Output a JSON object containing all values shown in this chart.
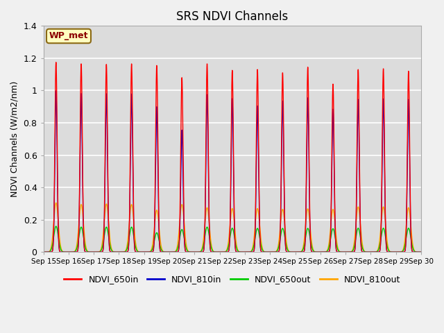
{
  "title": "SRS NDVI Channels",
  "ylabel": "NDVI Channels (W/m2/nm)",
  "annotation": "WP_met",
  "annotation_color": "#8B0000",
  "annotation_bg": "#FFFFC0",
  "annotation_border": "#8B6914",
  "ylim": [
    0.0,
    1.4
  ],
  "yticks": [
    0.0,
    0.2,
    0.4,
    0.6,
    0.8,
    1.0,
    1.2,
    1.4
  ],
  "xtick_labels": [
    "Sep 15",
    "Sep 16",
    "Sep 17",
    "Sep 18",
    "Sep 19",
    "Sep 20",
    "Sep 21",
    "Sep 22",
    "Sep 23",
    "Sep 24",
    "Sep 25",
    "Sep 26",
    "Sep 27",
    "Sep 28",
    "Sep 29",
    "Sep 30"
  ],
  "colors": {
    "NDVI_650in": "#FF0000",
    "NDVI_810in": "#0000CC",
    "NDVI_650out": "#00CC00",
    "NDVI_810out": "#FFA500"
  },
  "legend_labels": [
    "NDVI_650in",
    "NDVI_810in",
    "NDVI_650out",
    "NDVI_810out"
  ],
  "background_color": "#DCDCDC",
  "fig_background": "#F0F0F0",
  "grid_color": "#FFFFFF",
  "num_peaks": 15,
  "peak_650in": [
    1.175,
    1.165,
    1.162,
    1.165,
    1.155,
    1.08,
    1.165,
    1.125,
    1.13,
    1.11,
    1.145,
    1.04,
    1.13,
    1.135,
    1.12
  ],
  "peak_810in": [
    0.998,
    0.982,
    0.98,
    0.978,
    0.9,
    0.755,
    0.975,
    0.95,
    0.905,
    0.935,
    0.955,
    0.885,
    0.945,
    0.948,
    0.945
  ],
  "peak_650out": [
    0.16,
    0.155,
    0.155,
    0.155,
    0.12,
    0.14,
    0.155,
    0.148,
    0.147,
    0.147,
    0.147,
    0.145,
    0.148,
    0.148,
    0.148
  ],
  "peak_810out": [
    0.305,
    0.295,
    0.298,
    0.295,
    0.26,
    0.295,
    0.275,
    0.27,
    0.27,
    0.265,
    0.268,
    0.265,
    0.28,
    0.28,
    0.275
  ],
  "sigma_in": 0.045,
  "sigma_out": 0.09,
  "line_width": 1.0
}
